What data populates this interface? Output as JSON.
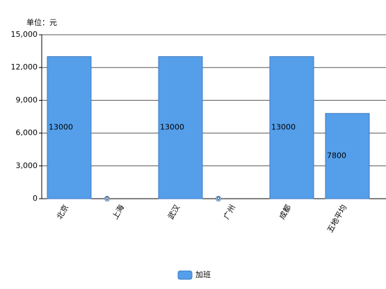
{
  "chart_data": {
    "type": "bar",
    "unit_label": "单位：元",
    "categories": [
      "北京",
      "上海",
      "武汉",
      "广州",
      "成都",
      "五地平均"
    ],
    "series": [
      {
        "name": "加班",
        "color": "#559fea",
        "values": [
          13000,
          0,
          13000,
          0,
          13000,
          7800
        ]
      }
    ],
    "ylim": [
      0,
      15000
    ],
    "yticks": [
      0,
      {
        "value": 3000,
        "label": "3,000"
      },
      {
        "value": 6000,
        "label": "6,000"
      },
      {
        "value": 9000,
        "label": "9,000"
      },
      {
        "value": 12000,
        "label": "12,000"
      },
      {
        "value": 15000,
        "label": "15,000"
      }
    ],
    "grid": true,
    "data_labels": true,
    "legend": "bottom"
  }
}
